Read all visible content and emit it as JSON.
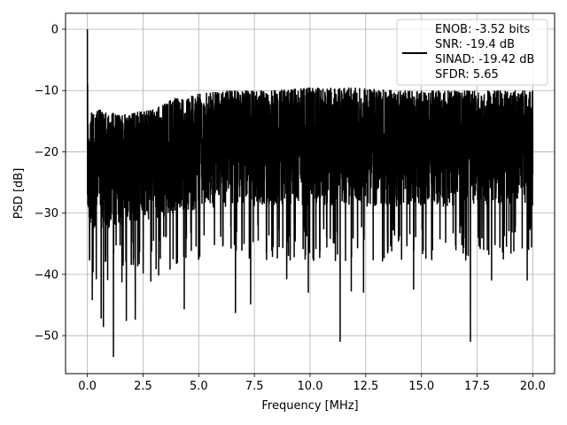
{
  "chart_data": {
    "type": "line",
    "title": "",
    "xlabel": "Frequency [MHz]",
    "ylabel": "PSD [dB]",
    "xlim": [
      -0.98,
      20.98
    ],
    "ylim": [
      -56.2,
      2.6
    ],
    "grid": true,
    "legend_position": "top-right",
    "x_ticks": [
      0,
      2.5,
      5,
      7.5,
      10,
      12.5,
      15,
      17.5,
      20
    ],
    "x_tick_labels": [
      "0.0",
      "2.5",
      "5.0",
      "7.5",
      "10.0",
      "12.5",
      "15.0",
      "17.5",
      "20.0"
    ],
    "y_ticks": [
      0,
      -10,
      -20,
      -30,
      -40,
      -50
    ],
    "y_tick_labels": [
      "0",
      "−10",
      "−20",
      "−30",
      "−40",
      "−50"
    ],
    "series": [
      {
        "color": "#000000",
        "legend_lines": [
          "ENOB: -3.52 bits",
          "SNR: -19.4 dB",
          "SINAD: -19.42 dB",
          "SFDR: 5.65"
        ],
        "x_range": [
          0,
          20
        ],
        "n_points": 4000,
        "level_envelope": {
          "x": [
            0,
            0.5,
            1.5,
            3,
            4,
            6,
            8,
            10,
            12,
            14,
            16,
            18,
            20
          ],
          "top": [
            -14,
            -13,
            -14,
            -13,
            -11,
            -10,
            -10,
            -9.5,
            -9.5,
            -10,
            -10,
            -10,
            -10
          ],
          "bottom": [
            -33,
            -33,
            -32,
            -31,
            -30,
            -29,
            -29,
            -29,
            -29,
            -29,
            -29,
            -29,
            -29
          ]
        },
        "peaks": [
          {
            "x": 0,
            "y": 0
          }
        ],
        "deep_dips": [
          {
            "x": 0.22,
            "y": -44.2
          },
          {
            "x": 0.4,
            "y": -40.8
          },
          {
            "x": 0.62,
            "y": -47.2
          },
          {
            "x": 0.72,
            "y": -48.6
          },
          {
            "x": 1.17,
            "y": -53.5
          },
          {
            "x": 1.55,
            "y": -41.3
          },
          {
            "x": 1.75,
            "y": -47.6
          },
          {
            "x": 2.15,
            "y": -47.4
          },
          {
            "x": 2.85,
            "y": -41.2
          },
          {
            "x": 3.2,
            "y": -40.2
          },
          {
            "x": 4.35,
            "y": -45.7
          },
          {
            "x": 6.65,
            "y": -46.3
          },
          {
            "x": 7.33,
            "y": -44.9
          },
          {
            "x": 8.95,
            "y": -40.8
          },
          {
            "x": 9.92,
            "y": -43.0
          },
          {
            "x": 11.35,
            "y": -51.0
          },
          {
            "x": 11.85,
            "y": -42.8
          },
          {
            "x": 12.4,
            "y": -43.0
          },
          {
            "x": 14.65,
            "y": -42.5
          },
          {
            "x": 17.2,
            "y": -51.0
          },
          {
            "x": 18.15,
            "y": -41.0
          },
          {
            "x": 19.75,
            "y": -41.0
          }
        ]
      }
    ]
  }
}
